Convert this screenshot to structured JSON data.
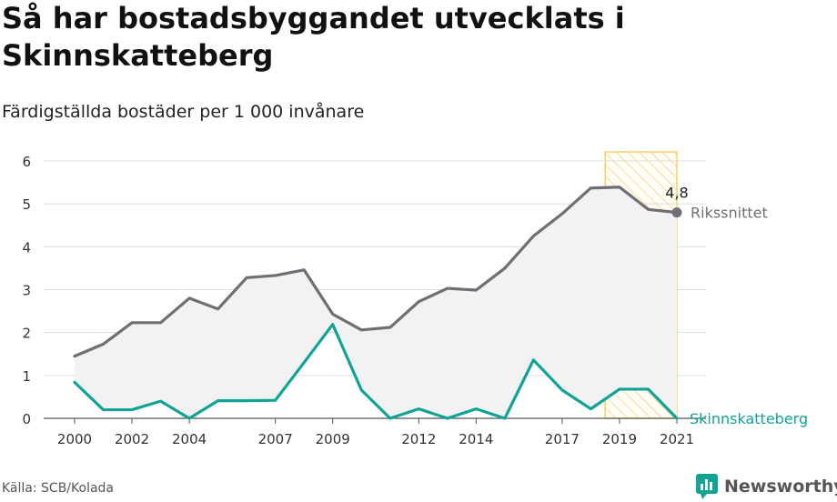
{
  "title": "Så har bostadsbyggandet utvecklats i Skinnskatteberg",
  "subtitle": "Färdigställda bostäder per 1 000 invånare",
  "source": "Källa: SCB/Kolada",
  "brand": "Newsworthy",
  "colors": {
    "national": "#6e6e74",
    "local": "#12a397",
    "highlight": "#f5c842",
    "fill": "#f2f2f2",
    "grid": "#dddddd"
  },
  "chart_data": {
    "type": "line",
    "x": [
      2000,
      2001,
      2002,
      2003,
      2004,
      2005,
      2006,
      2007,
      2008,
      2009,
      2010,
      2011,
      2012,
      2013,
      2014,
      2015,
      2016,
      2017,
      2018,
      2019,
      2020,
      2021
    ],
    "xticks": [
      2000,
      2002,
      2004,
      2007,
      2009,
      2012,
      2014,
      2017,
      2019,
      2021
    ],
    "xtick_labels": [
      "2000",
      "2002",
      "2004",
      "2007",
      "2009",
      "2012",
      "2014",
      "2017",
      "2019",
      "2021"
    ],
    "yticks": [
      0,
      1,
      2,
      3,
      4,
      5,
      6
    ],
    "ylim": [
      0,
      6
    ],
    "xlim": [
      2000,
      2021
    ],
    "grid": true,
    "highlight_range": [
      2018.5,
      2021
    ],
    "series": [
      {
        "name": "Rikssnittet",
        "values": [
          1.45,
          1.73,
          2.23,
          2.23,
          2.8,
          2.55,
          3.28,
          3.33,
          3.46,
          2.43,
          2.06,
          2.12,
          2.72,
          3.03,
          2.99,
          3.5,
          4.25,
          4.77,
          5.37,
          5.39,
          4.87,
          4.8
        ]
      },
      {
        "name": "Skinnskatteberg",
        "values": [
          0.84,
          0.2,
          0.2,
          0.4,
          0.0,
          0.41,
          0.41,
          0.42,
          1.3,
          2.19,
          0.66,
          0.0,
          0.22,
          0.0,
          0.22,
          0.0,
          1.36,
          0.66,
          0.22,
          0.68,
          0.68,
          0.0
        ]
      }
    ],
    "annotations": [
      {
        "text": "4,8",
        "x": 2021,
        "y": 4.8,
        "series": "Rikssnittet"
      }
    ]
  }
}
